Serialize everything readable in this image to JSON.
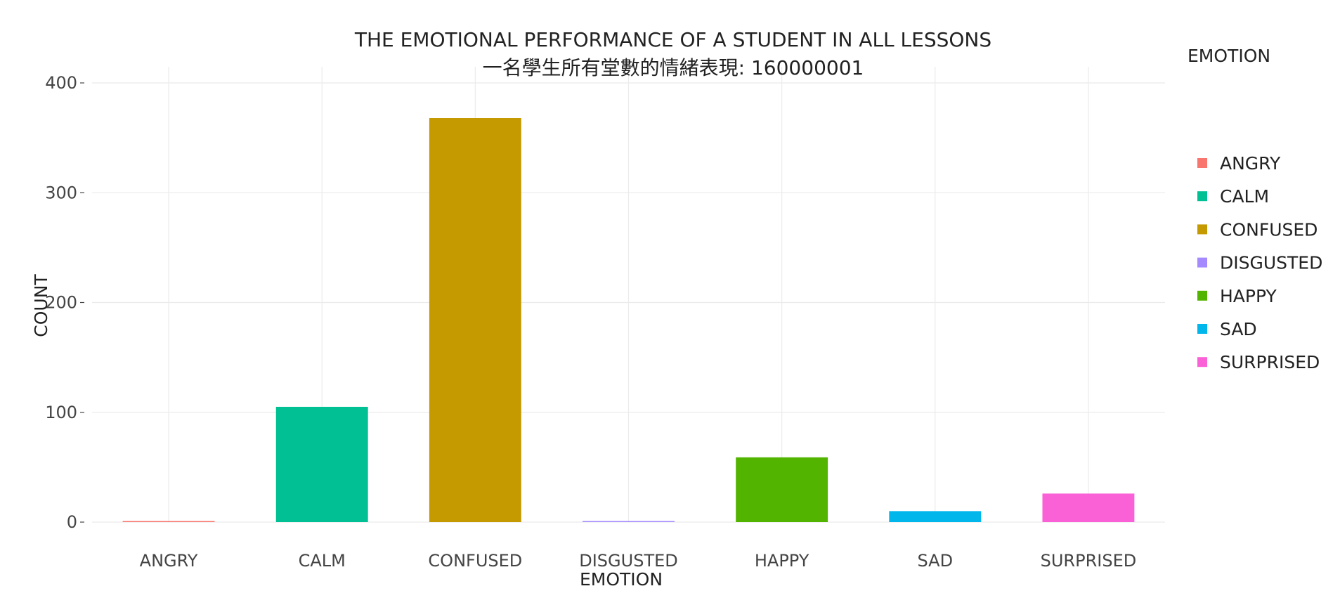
{
  "chart_data": {
    "type": "bar",
    "title": "THE EMOTIONAL PERFORMANCE OF A STUDENT IN ALL LESSONS",
    "subtitle": "一名學生所有堂數的情緒表現: 160000001",
    "xlabel": "EMOTION",
    "ylabel": "COUNT",
    "categories": [
      "ANGRY",
      "CALM",
      "CONFUSED",
      "DISGUSTED",
      "HAPPY",
      "SAD",
      "SURPRISED"
    ],
    "values": [
      1,
      105,
      368,
      1,
      59,
      10,
      26
    ],
    "colors": [
      "#F8766D",
      "#00C094",
      "#C49A00",
      "#A58AFF",
      "#53B400",
      "#00B6EB",
      "#FB61D7"
    ],
    "ylim": [
      0,
      400
    ],
    "yticks": [
      0,
      100,
      200,
      300,
      400
    ],
    "grid": true,
    "legend": {
      "title": "EMOTION",
      "placement": "right",
      "entries": [
        "ANGRY",
        "CALM",
        "CONFUSED",
        "DISGUSTED",
        "HAPPY",
        "SAD",
        "SURPRISED"
      ]
    }
  }
}
